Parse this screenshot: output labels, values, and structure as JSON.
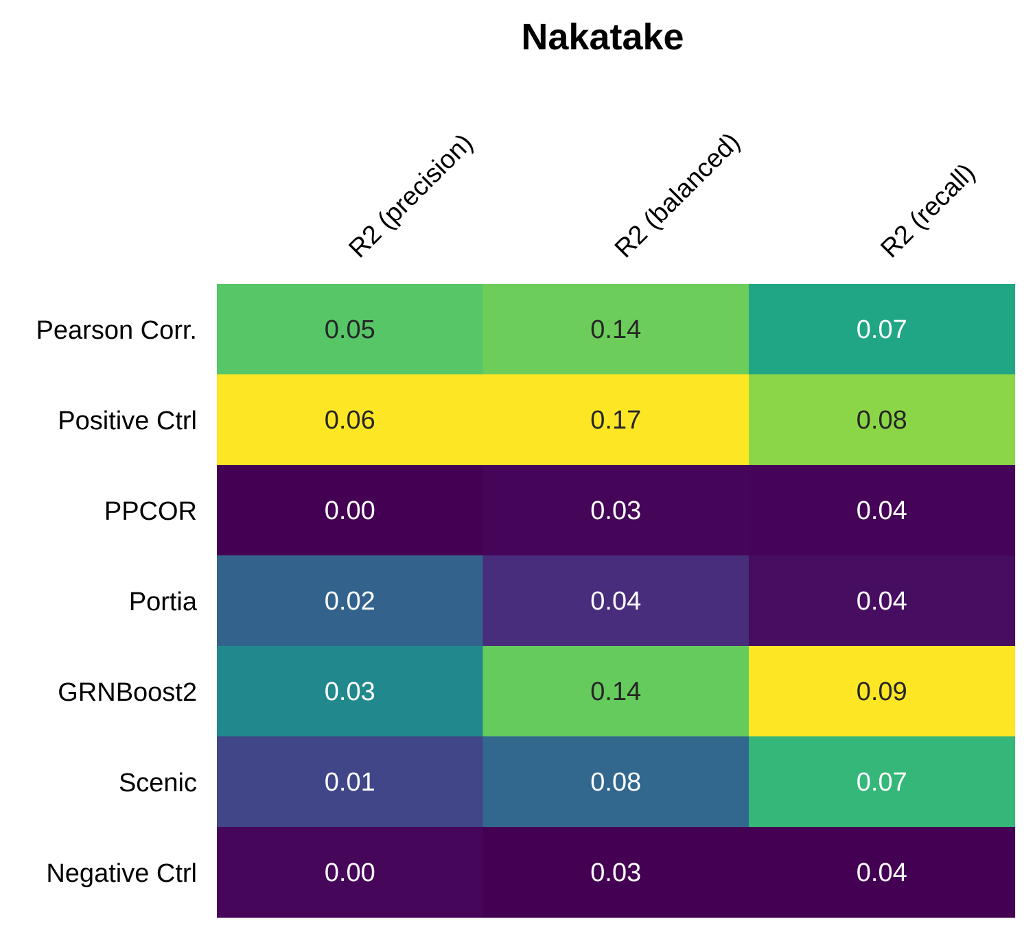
{
  "chart_data": {
    "type": "heatmap",
    "title": "Nakatake",
    "columns": [
      "R2 (precision)",
      "R2 (balanced)",
      "R2 (recall)"
    ],
    "rows": [
      "Pearson Corr.",
      "Positive Ctrl",
      "PPCOR",
      "Portia",
      "GRNBoost2",
      "Scenic",
      "Negative Ctrl"
    ],
    "values": [
      [
        0.05,
        0.14,
        0.07
      ],
      [
        0.06,
        0.17,
        0.08
      ],
      [
        0.0,
        0.03,
        0.04
      ],
      [
        0.02,
        0.04,
        0.04
      ],
      [
        0.03,
        0.14,
        0.09
      ],
      [
        0.01,
        0.08,
        0.07
      ],
      [
        0.0,
        0.03,
        0.04
      ]
    ],
    "value_labels": [
      [
        "0.05",
        "0.14",
        "0.07"
      ],
      [
        "0.06",
        "0.17",
        "0.08"
      ],
      [
        "0.00",
        "0.03",
        "0.04"
      ],
      [
        "0.02",
        "0.04",
        "0.04"
      ],
      [
        "0.03",
        "0.14",
        "0.09"
      ],
      [
        "0.01",
        "0.08",
        "0.07"
      ],
      [
        "0.00",
        "0.03",
        "0.04"
      ]
    ],
    "colormap": "viridis",
    "color_scale": "per-column",
    "cell_colors": [
      [
        "#56c667",
        "#6ccd5a",
        "#21a685"
      ],
      [
        "#fde725",
        "#fde725",
        "#8bd646"
      ],
      [
        "#440154",
        "#450559",
        "#450457"
      ],
      [
        "#33638d",
        "#472d7b",
        "#470d60"
      ],
      [
        "#21898e",
        "#66cb5d",
        "#fde725"
      ],
      [
        "#404688",
        "#32678e",
        "#35b779"
      ],
      [
        "#46075a",
        "#440154",
        "#440154"
      ]
    ],
    "text_colors": [
      [
        "#262626",
        "#262626",
        "#ffffff"
      ],
      [
        "#262626",
        "#262626",
        "#262626"
      ],
      [
        "#ffffff",
        "#ffffff",
        "#ffffff"
      ],
      [
        "#ffffff",
        "#ffffff",
        "#ffffff"
      ],
      [
        "#ffffff",
        "#262626",
        "#262626"
      ],
      [
        "#ffffff",
        "#ffffff",
        "#ffffff"
      ],
      [
        "#ffffff",
        "#ffffff",
        "#ffffff"
      ]
    ],
    "colorbar": false,
    "grid": false
  }
}
